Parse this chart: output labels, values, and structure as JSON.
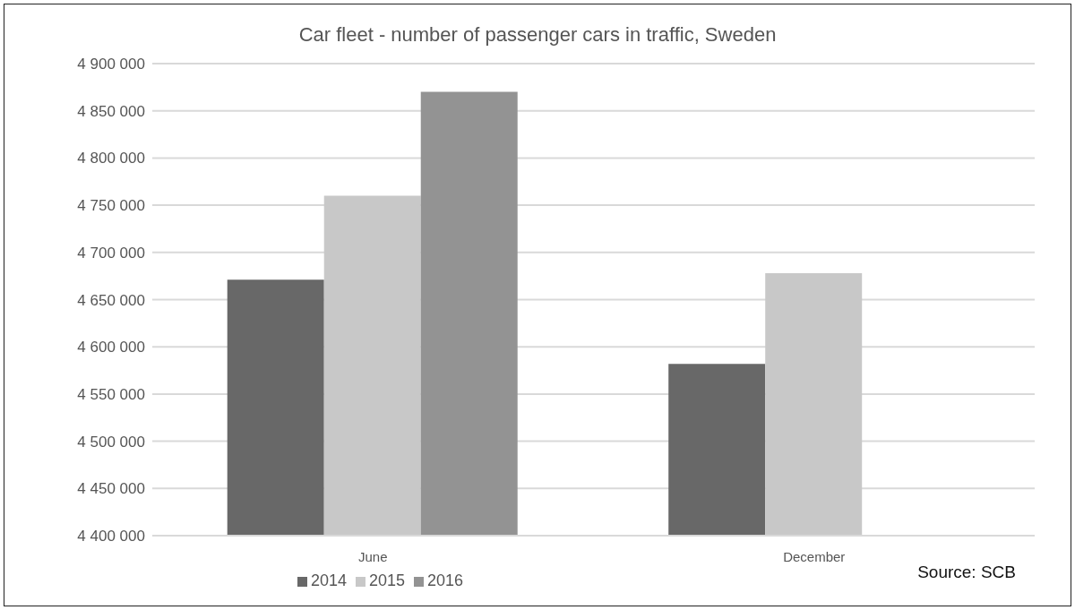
{
  "chart_data": {
    "type": "bar",
    "title": "Car fleet - number of passenger cars in traffic, Sweden",
    "categories": [
      "June",
      "December"
    ],
    "series": [
      {
        "name": "2014",
        "color": "#686868",
        "values": [
          4671000,
          4582000
        ]
      },
      {
        "name": "2015",
        "color": "#c8c8c8",
        "values": [
          4760000,
          4678000
        ]
      },
      {
        "name": "2016",
        "color": "#939393",
        "values": [
          4870000,
          null
        ]
      }
    ],
    "ylim": [
      4400000,
      4900000
    ],
    "yticks": [
      {
        "value": 4400000,
        "label": "4 400 000"
      },
      {
        "value": 4450000,
        "label": "4 450 000"
      },
      {
        "value": 4500000,
        "label": "4 500 000"
      },
      {
        "value": 4550000,
        "label": "4 550 000"
      },
      {
        "value": 4600000,
        "label": "4 600 000"
      },
      {
        "value": 4650000,
        "label": "4 650 000"
      },
      {
        "value": 4700000,
        "label": "4 700 000"
      },
      {
        "value": 4750000,
        "label": "4 750 000"
      },
      {
        "value": 4800000,
        "label": "4 800 000"
      },
      {
        "value": 4850000,
        "label": "4 850 000"
      },
      {
        "value": 4900000,
        "label": "4 900 000"
      }
    ],
    "grid": "y",
    "legend": "bottom",
    "annotations": [
      "Source: SCB"
    ]
  }
}
